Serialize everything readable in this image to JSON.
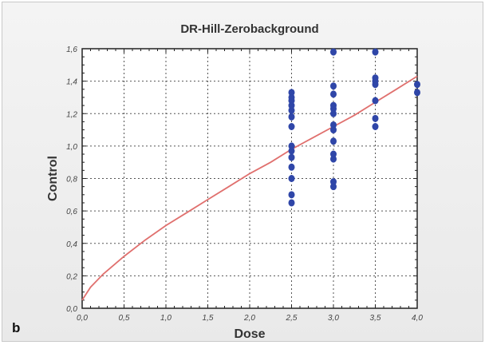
{
  "panel_label": "b",
  "chart_data": {
    "type": "scatter",
    "title": "DR-Hill-Zerobackground",
    "xlabel": "Dose",
    "ylabel": "Control",
    "xlim": [
      0.0,
      4.0
    ],
    "ylim": [
      0.0,
      1.6
    ],
    "x_ticks": [
      "0,0",
      "0,5",
      "1,0",
      "1,5",
      "2,0",
      "2,5",
      "3,0",
      "3,5",
      "4,0"
    ],
    "y_ticks": [
      "0,0",
      "0,2",
      "0,4",
      "0,6",
      "0,8",
      "1,0",
      "1,2",
      "1,4",
      "1,6"
    ],
    "grid": true,
    "series": [
      {
        "kind": "points",
        "color": "#2f46a8",
        "points": [
          [
            2.5,
            0.65
          ],
          [
            2.5,
            0.7
          ],
          [
            2.5,
            0.8
          ],
          [
            2.5,
            0.87
          ],
          [
            2.5,
            0.93
          ],
          [
            2.5,
            0.97
          ],
          [
            2.5,
            1.0
          ],
          [
            2.5,
            1.12
          ],
          [
            2.5,
            1.18
          ],
          [
            2.5,
            1.22
          ],
          [
            2.5,
            1.25
          ],
          [
            2.5,
            1.28
          ],
          [
            2.5,
            1.3
          ],
          [
            2.5,
            1.33
          ],
          [
            3.0,
            0.75
          ],
          [
            3.0,
            0.78
          ],
          [
            3.0,
            0.92
          ],
          [
            3.0,
            0.95
          ],
          [
            3.0,
            1.03
          ],
          [
            3.0,
            1.1
          ],
          [
            3.0,
            1.13
          ],
          [
            3.0,
            1.2
          ],
          [
            3.0,
            1.23
          ],
          [
            3.0,
            1.25
          ],
          [
            3.0,
            1.32
          ],
          [
            3.0,
            1.37
          ],
          [
            3.0,
            1.58
          ],
          [
            3.5,
            1.12
          ],
          [
            3.5,
            1.17
          ],
          [
            3.5,
            1.28
          ],
          [
            3.5,
            1.38
          ],
          [
            3.5,
            1.4
          ],
          [
            3.5,
            1.42
          ],
          [
            3.5,
            1.58
          ],
          [
            4.0,
            1.33
          ],
          [
            4.0,
            1.38
          ]
        ]
      },
      {
        "kind": "curve",
        "color": "#e0706e",
        "points": [
          [
            0.0,
            0.05
          ],
          [
            0.1,
            0.13
          ],
          [
            0.25,
            0.21
          ],
          [
            0.5,
            0.32
          ],
          [
            0.75,
            0.42
          ],
          [
            1.0,
            0.51
          ],
          [
            1.25,
            0.59
          ],
          [
            1.5,
            0.67
          ],
          [
            1.75,
            0.75
          ],
          [
            2.0,
            0.83
          ],
          [
            2.25,
            0.9
          ],
          [
            2.5,
            0.98
          ],
          [
            2.75,
            1.05
          ],
          [
            3.0,
            1.12
          ],
          [
            3.25,
            1.19
          ],
          [
            3.5,
            1.27
          ],
          [
            3.75,
            1.35
          ],
          [
            4.0,
            1.43
          ]
        ]
      }
    ]
  }
}
